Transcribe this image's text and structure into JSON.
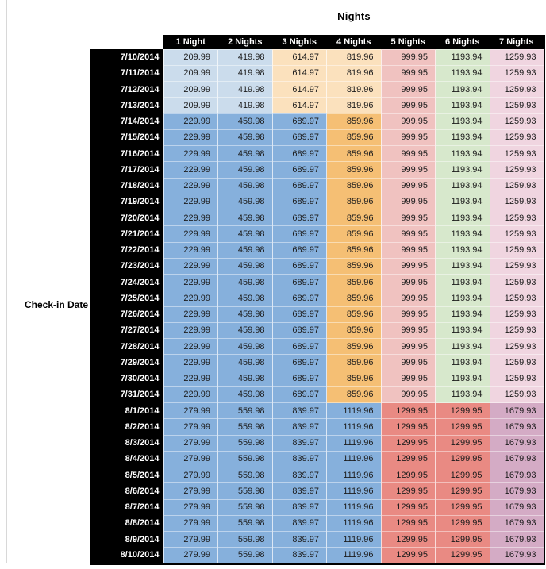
{
  "page": {
    "column_group_title": "Nights",
    "row_group_title": "Check-in Date"
  },
  "colors": {
    "light_blue": "#cbdcec",
    "med_blue": "#86b0dc",
    "light_orange": "#fbe1bd",
    "med_orange": "#f5bf74",
    "light_red": "#f0c2c0",
    "med_red": "#e98a83",
    "light_green": "#d7e8cc",
    "light_purple": "#f0d5e0",
    "med_purple": "#d4abc5",
    "header_bg": "#000000",
    "header_text": "#ffffff",
    "cell_text": "#1c1c1c",
    "side_gridline": "#d8d8d8"
  },
  "chart_data": {
    "type": "table",
    "title": "Nights",
    "row_label": "Check-in Date",
    "columns": [
      "1 Night",
      "2 Nights",
      "3 Nights",
      "4 Nights",
      "5 Nights",
      "6 Nights",
      "7 Nights"
    ],
    "bands": {
      "early_july": [
        "light_blue",
        "light_blue",
        "light_orange",
        "light_orange",
        "light_red",
        "light_green",
        "light_purple"
      ],
      "mid_july": [
        "med_blue",
        "med_blue",
        "med_blue",
        "med_orange",
        "light_red",
        "light_green",
        "light_purple"
      ],
      "august": [
        "med_blue",
        "med_blue",
        "med_blue",
        "med_blue",
        "med_red",
        "med_red",
        "med_purple"
      ]
    },
    "rows": [
      {
        "date": "7/10/2014",
        "band": "early_july",
        "values": [
          209.99,
          419.98,
          614.97,
          819.96,
          999.95,
          1193.94,
          1259.93
        ]
      },
      {
        "date": "7/11/2014",
        "band": "early_july",
        "values": [
          209.99,
          419.98,
          614.97,
          819.96,
          999.95,
          1193.94,
          1259.93
        ]
      },
      {
        "date": "7/12/2014",
        "band": "early_july",
        "values": [
          209.99,
          419.98,
          614.97,
          819.96,
          999.95,
          1193.94,
          1259.93
        ]
      },
      {
        "date": "7/13/2014",
        "band": "early_july",
        "values": [
          209.99,
          419.98,
          614.97,
          819.96,
          999.95,
          1193.94,
          1259.93
        ]
      },
      {
        "date": "7/14/2014",
        "band": "mid_july",
        "values": [
          229.99,
          459.98,
          689.97,
          859.96,
          999.95,
          1193.94,
          1259.93
        ]
      },
      {
        "date": "7/15/2014",
        "band": "mid_july",
        "values": [
          229.99,
          459.98,
          689.97,
          859.96,
          999.95,
          1193.94,
          1259.93
        ]
      },
      {
        "date": "7/16/2014",
        "band": "mid_july",
        "values": [
          229.99,
          459.98,
          689.97,
          859.96,
          999.95,
          1193.94,
          1259.93
        ]
      },
      {
        "date": "7/17/2014",
        "band": "mid_july",
        "values": [
          229.99,
          459.98,
          689.97,
          859.96,
          999.95,
          1193.94,
          1259.93
        ]
      },
      {
        "date": "7/18/2014",
        "band": "mid_july",
        "values": [
          229.99,
          459.98,
          689.97,
          859.96,
          999.95,
          1193.94,
          1259.93
        ]
      },
      {
        "date": "7/19/2014",
        "band": "mid_july",
        "values": [
          229.99,
          459.98,
          689.97,
          859.96,
          999.95,
          1193.94,
          1259.93
        ]
      },
      {
        "date": "7/20/2014",
        "band": "mid_july",
        "values": [
          229.99,
          459.98,
          689.97,
          859.96,
          999.95,
          1193.94,
          1259.93
        ]
      },
      {
        "date": "7/21/2014",
        "band": "mid_july",
        "values": [
          229.99,
          459.98,
          689.97,
          859.96,
          999.95,
          1193.94,
          1259.93
        ]
      },
      {
        "date": "7/22/2014",
        "band": "mid_july",
        "values": [
          229.99,
          459.98,
          689.97,
          859.96,
          999.95,
          1193.94,
          1259.93
        ]
      },
      {
        "date": "7/23/2014",
        "band": "mid_july",
        "values": [
          229.99,
          459.98,
          689.97,
          859.96,
          999.95,
          1193.94,
          1259.93
        ]
      },
      {
        "date": "7/24/2014",
        "band": "mid_july",
        "values": [
          229.99,
          459.98,
          689.97,
          859.96,
          999.95,
          1193.94,
          1259.93
        ]
      },
      {
        "date": "7/25/2014",
        "band": "mid_july",
        "values": [
          229.99,
          459.98,
          689.97,
          859.96,
          999.95,
          1193.94,
          1259.93
        ]
      },
      {
        "date": "7/26/2014",
        "band": "mid_july",
        "values": [
          229.99,
          459.98,
          689.97,
          859.96,
          999.95,
          1193.94,
          1259.93
        ]
      },
      {
        "date": "7/27/2014",
        "band": "mid_july",
        "values": [
          229.99,
          459.98,
          689.97,
          859.96,
          999.95,
          1193.94,
          1259.93
        ]
      },
      {
        "date": "7/28/2014",
        "band": "mid_july",
        "values": [
          229.99,
          459.98,
          689.97,
          859.96,
          999.95,
          1193.94,
          1259.93
        ]
      },
      {
        "date": "7/29/2014",
        "band": "mid_july",
        "values": [
          229.99,
          459.98,
          689.97,
          859.96,
          999.95,
          1193.94,
          1259.93
        ]
      },
      {
        "date": "7/30/2014",
        "band": "mid_july",
        "values": [
          229.99,
          459.98,
          689.97,
          859.96,
          999.95,
          1193.94,
          1259.93
        ]
      },
      {
        "date": "7/31/2014",
        "band": "mid_july",
        "values": [
          229.99,
          459.98,
          689.97,
          859.96,
          999.95,
          1193.94,
          1259.93
        ]
      },
      {
        "date": "8/1/2014",
        "band": "august",
        "values": [
          279.99,
          559.98,
          839.97,
          1119.96,
          1299.95,
          1299.95,
          1679.93
        ]
      },
      {
        "date": "8/2/2014",
        "band": "august",
        "values": [
          279.99,
          559.98,
          839.97,
          1119.96,
          1299.95,
          1299.95,
          1679.93
        ]
      },
      {
        "date": "8/3/2014",
        "band": "august",
        "values": [
          279.99,
          559.98,
          839.97,
          1119.96,
          1299.95,
          1299.95,
          1679.93
        ]
      },
      {
        "date": "8/4/2014",
        "band": "august",
        "values": [
          279.99,
          559.98,
          839.97,
          1119.96,
          1299.95,
          1299.95,
          1679.93
        ]
      },
      {
        "date": "8/5/2014",
        "band": "august",
        "values": [
          279.99,
          559.98,
          839.97,
          1119.96,
          1299.95,
          1299.95,
          1679.93
        ]
      },
      {
        "date": "8/6/2014",
        "band": "august",
        "values": [
          279.99,
          559.98,
          839.97,
          1119.96,
          1299.95,
          1299.95,
          1679.93
        ]
      },
      {
        "date": "8/7/2014",
        "band": "august",
        "values": [
          279.99,
          559.98,
          839.97,
          1119.96,
          1299.95,
          1299.95,
          1679.93
        ]
      },
      {
        "date": "8/8/2014",
        "band": "august",
        "values": [
          279.99,
          559.98,
          839.97,
          1119.96,
          1299.95,
          1299.95,
          1679.93
        ]
      },
      {
        "date": "8/9/2014",
        "band": "august",
        "values": [
          279.99,
          559.98,
          839.97,
          1119.96,
          1299.95,
          1299.95,
          1679.93
        ]
      },
      {
        "date": "8/10/2014",
        "band": "august",
        "values": [
          279.99,
          559.98,
          839.97,
          1119.96,
          1299.95,
          1299.95,
          1679.93
        ]
      }
    ]
  }
}
